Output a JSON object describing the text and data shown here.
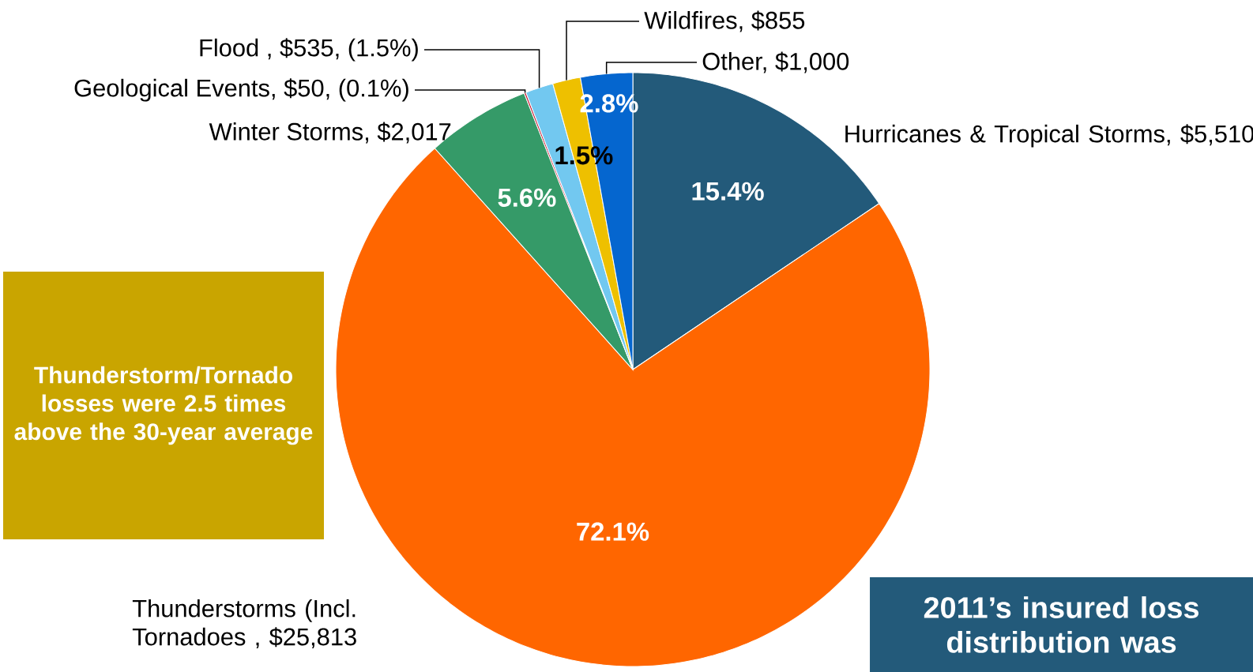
{
  "chart_data": {
    "type": "pie",
    "categories": [
      "Hurricanes & Tropical Storms, $5,510",
      "Thunderstorms (Incl. Tornadoes , $25,813",
      "Winter Storms, $2,017",
      "Geological Events, $50, (0.1%)",
      "Flood , $535, (1.5%)",
      "Wildfires, $855",
      "Other,  $1,000"
    ],
    "values": [
      15.4,
      72.1,
      5.6,
      0.1,
      1.5,
      1.5,
      2.8
    ],
    "colors": [
      "#235a7a",
      "#ff6600",
      "#359a68",
      "#c0102a",
      "#72c8f0",
      "#eec000",
      "#0566cf"
    ],
    "value_labels": [
      "15.4%",
      "72.1%",
      "5.6%",
      null,
      null,
      "1.5%",
      "2.8%"
    ],
    "annotations": [
      "Thunderstorm/Tornado losses were 2.5 times above the 30-year average",
      "2011’s insured loss distribution was"
    ]
  }
}
